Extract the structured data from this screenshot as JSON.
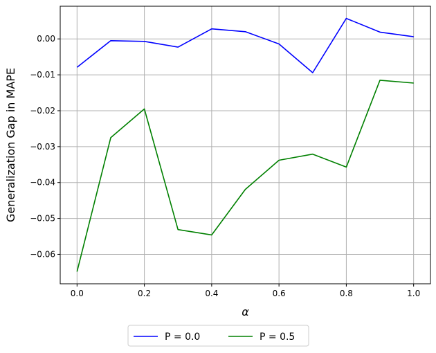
{
  "chart_data": {
    "type": "line",
    "title": "",
    "xlabel": "α",
    "ylabel": "Generalization Gap in MAPE",
    "x": [
      0.0,
      0.1,
      0.2,
      0.3,
      0.4,
      0.5,
      0.6,
      0.7,
      0.8,
      0.9,
      1.0
    ],
    "series": [
      {
        "name": "P = 0.0",
        "color": "#0000ff",
        "values": [
          -0.0079,
          -0.0005,
          -0.0007,
          -0.0023,
          0.0028,
          0.002,
          -0.0014,
          -0.0094,
          0.0057,
          0.0019,
          0.0006
        ]
      },
      {
        "name": "P = 0.5",
        "color": "#008000",
        "values": [
          -0.0648,
          -0.0275,
          -0.0195,
          -0.0531,
          -0.0546,
          -0.0419,
          -0.0338,
          -0.0321,
          -0.0357,
          -0.0115,
          -0.0123
        ]
      }
    ],
    "xticks": [
      0.0,
      0.2,
      0.4,
      0.6,
      0.8,
      1.0
    ],
    "xtick_labels": [
      "0.0",
      "0.2",
      "0.4",
      "0.6",
      "0.8",
      "1.0"
    ],
    "yticks": [
      0.0,
      -0.01,
      -0.02,
      -0.03,
      -0.04,
      -0.05,
      -0.06
    ],
    "ytick_labels": [
      "0.00",
      "−0.01",
      "−0.02",
      "−0.03",
      "−0.04",
      "−0.05",
      "−0.06"
    ],
    "xlim": [
      -0.05,
      1.05
    ],
    "ylim": [
      -0.0682,
      0.0091
    ],
    "grid": true,
    "legend_position": "bottom-center"
  }
}
